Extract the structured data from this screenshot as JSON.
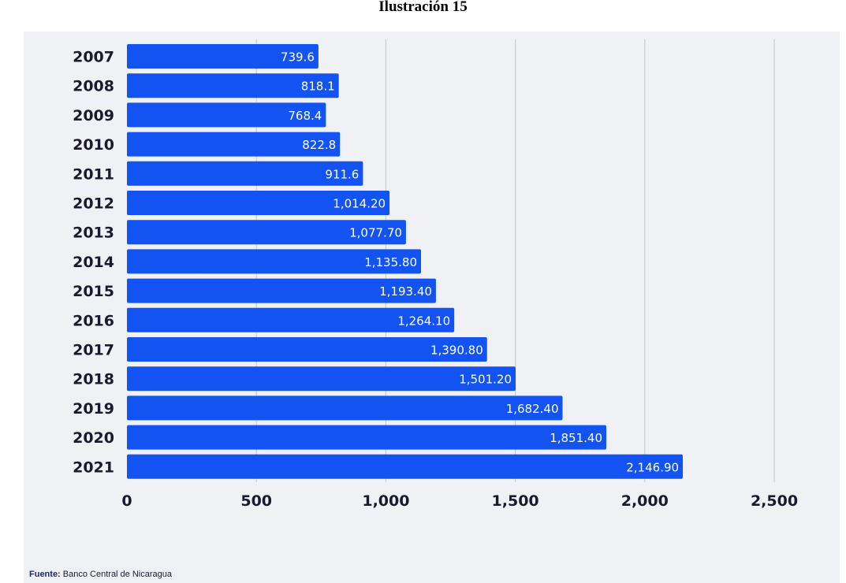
{
  "figure_title": "Ilustración 15",
  "source": {
    "label": "Fuente:",
    "text": "Banco Central de Nicaragua"
  },
  "colors": {
    "bar": "#1353f2",
    "panel": "#f0f1f4",
    "grid": "#c9cbd0",
    "text": "#1a1a2e",
    "bar_label": "#ffffff"
  },
  "chart_data": {
    "type": "bar",
    "orientation": "horizontal",
    "categories": [
      "2007",
      "2008",
      "2009",
      "2010",
      "2011",
      "2012",
      "2013",
      "2014",
      "2015",
      "2016",
      "2017",
      "2018",
      "2019",
      "2020",
      "2021"
    ],
    "values": [
      739.6,
      818.1,
      768.4,
      822.8,
      911.6,
      1014.2,
      1077.7,
      1135.8,
      1193.4,
      1264.1,
      1390.8,
      1501.2,
      1682.4,
      1851.4,
      2146.9
    ],
    "data_labels": [
      "739.6",
      "818.1",
      "768.4",
      "822.8",
      "911.6",
      "1,014.20",
      "1,077.70",
      "1,135.80",
      "1,193.40",
      "1,264.10",
      "1,390.80",
      "1,501.20",
      "1,682.40",
      "1,851.40",
      "2,146.90"
    ],
    "x_ticks": [
      0,
      500,
      1000,
      1500,
      2000,
      2500
    ],
    "x_tick_labels": [
      "0",
      "500",
      "1,000",
      "1,500",
      "2,000",
      "2,500"
    ],
    "xlim": [
      0,
      2500
    ],
    "grid": "vertical"
  }
}
